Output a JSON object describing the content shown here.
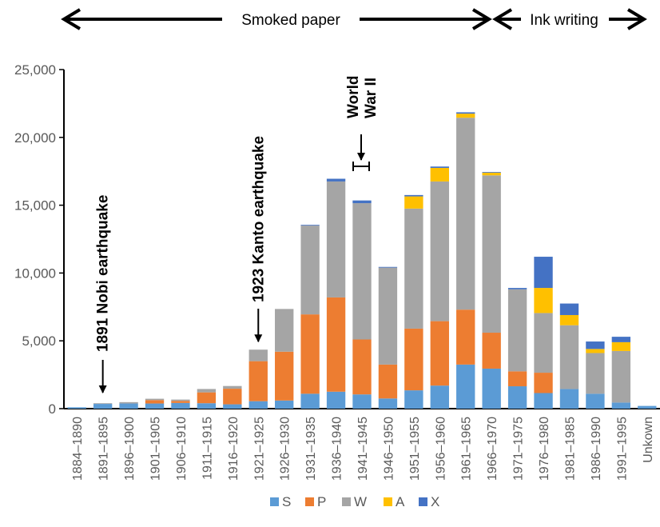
{
  "chart_data": {
    "type": "bar",
    "stacked": true,
    "categories": [
      "1884–1890",
      "1891–1895",
      "1896–1900",
      "1901–1905",
      "1906–1910",
      "1911–1915",
      "1916–1920",
      "1921–1925",
      "1926–1930",
      "1931–1935",
      "1936–1940",
      "1941–1945",
      "1946–1950",
      "1951–1955",
      "1956–1960",
      "1961–1965",
      "1966–1970",
      "1971–1975",
      "1976–1980",
      "1981–1985",
      "1986–1990",
      "1991–1995",
      "Unkown"
    ],
    "series": [
      {
        "name": "S",
        "color": "#5b9bd5",
        "values": [
          100,
          350,
          380,
          380,
          420,
          400,
          320,
          550,
          600,
          1100,
          1250,
          1050,
          750,
          1350,
          1700,
          3250,
          2950,
          1650,
          1150,
          1450,
          1100,
          450,
          200
        ]
      },
      {
        "name": "P",
        "color": "#ed7d31",
        "values": [
          0,
          0,
          0,
          250,
          150,
          800,
          1150,
          2950,
          3600,
          5850,
          6950,
          4050,
          2500,
          4550,
          4750,
          4050,
          2650,
          1100,
          1500,
          0,
          0,
          0,
          0
        ]
      },
      {
        "name": "W",
        "color": "#a5a5a5",
        "values": [
          0,
          50,
          100,
          100,
          100,
          250,
          200,
          850,
          3150,
          6550,
          8550,
          10050,
          7150,
          8850,
          10300,
          14150,
          11600,
          6050,
          4400,
          4700,
          3000,
          3800,
          0
        ]
      },
      {
        "name": "A",
        "color": "#ffc000",
        "values": [
          0,
          0,
          0,
          0,
          0,
          0,
          0,
          0,
          0,
          0,
          0,
          0,
          0,
          900,
          1000,
          300,
          200,
          0,
          1850,
          750,
          300,
          650,
          0
        ]
      },
      {
        "name": "X",
        "color": "#4472c4",
        "values": [
          0,
          0,
          0,
          0,
          0,
          0,
          0,
          0,
          0,
          50,
          200,
          200,
          50,
          100,
          100,
          100,
          50,
          100,
          2300,
          850,
          550,
          400,
          0
        ]
      }
    ],
    "ylim": [
      0,
      25000
    ],
    "yticks": [
      "0",
      "5,000",
      "10,000",
      "15,000",
      "20,000",
      "25,000"
    ],
    "ytick_values": [
      0,
      5000,
      10000,
      15000,
      20000,
      25000
    ],
    "legend": {
      "position": "bottom",
      "labels": [
        "S",
        "P",
        "W",
        "A",
        "X"
      ]
    },
    "grid": false,
    "annotations": [
      {
        "text": "1891 Nobi earthquake",
        "category": "1891–1895"
      },
      {
        "text": "1923 Kanto earthquake",
        "category": "1921–1925"
      },
      {
        "text_lines": [
          "World",
          "War II"
        ],
        "category": "1941–1945"
      }
    ],
    "eras": [
      {
        "label": "Smoked paper",
        "from": "1884–1890",
        "to": "1966–1970"
      },
      {
        "label": "Ink writing",
        "from": "1966–1970",
        "to": "1991–1995"
      }
    ]
  }
}
